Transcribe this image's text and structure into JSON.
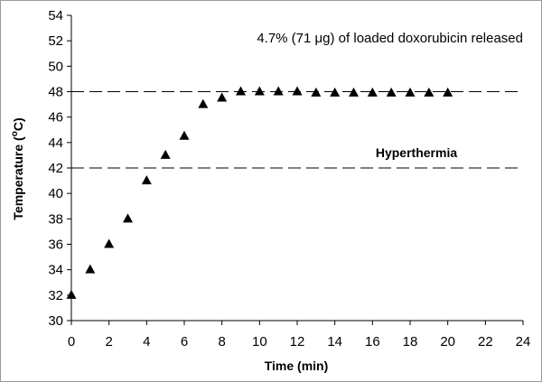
{
  "chart_data": {
    "type": "scatter",
    "xlabel": "Time (min)",
    "ylabel_main": "Temperature (",
    "ylabel_sup": "o",
    "ylabel_tail": "C)",
    "xlim": [
      0,
      24
    ],
    "ylim": [
      30,
      54
    ],
    "x_ticks": [
      "0",
      "2",
      "4",
      "6",
      "8",
      "10",
      "12",
      "14",
      "16",
      "18",
      "20",
      "22",
      "24"
    ],
    "y_ticks": [
      "30",
      "32",
      "34",
      "36",
      "38",
      "40",
      "42",
      "44",
      "46",
      "48",
      "50",
      "52",
      "54"
    ],
    "grid": false,
    "marker": "triangle",
    "marker_color": "#000000",
    "series": [
      {
        "x": [
          0,
          1,
          2,
          3,
          4,
          5,
          6,
          7,
          8,
          9,
          10,
          11,
          12,
          13,
          14,
          15,
          16,
          17,
          18,
          19,
          20
        ],
        "y": [
          32,
          34,
          36,
          38,
          41,
          43,
          44.5,
          47,
          47.5,
          48,
          48,
          48,
          48,
          47.9,
          47.9,
          47.9,
          47.9,
          47.9,
          47.9,
          47.9,
          47.9
        ]
      }
    ],
    "reference_lines": [
      {
        "y": 48,
        "style": "dashed"
      },
      {
        "y": 42,
        "style": "dashed"
      }
    ],
    "annotations": [
      {
        "text": "4.7% (71 μg) of loaded doxorubicin released"
      },
      {
        "text": "Hyperthermia"
      }
    ]
  }
}
